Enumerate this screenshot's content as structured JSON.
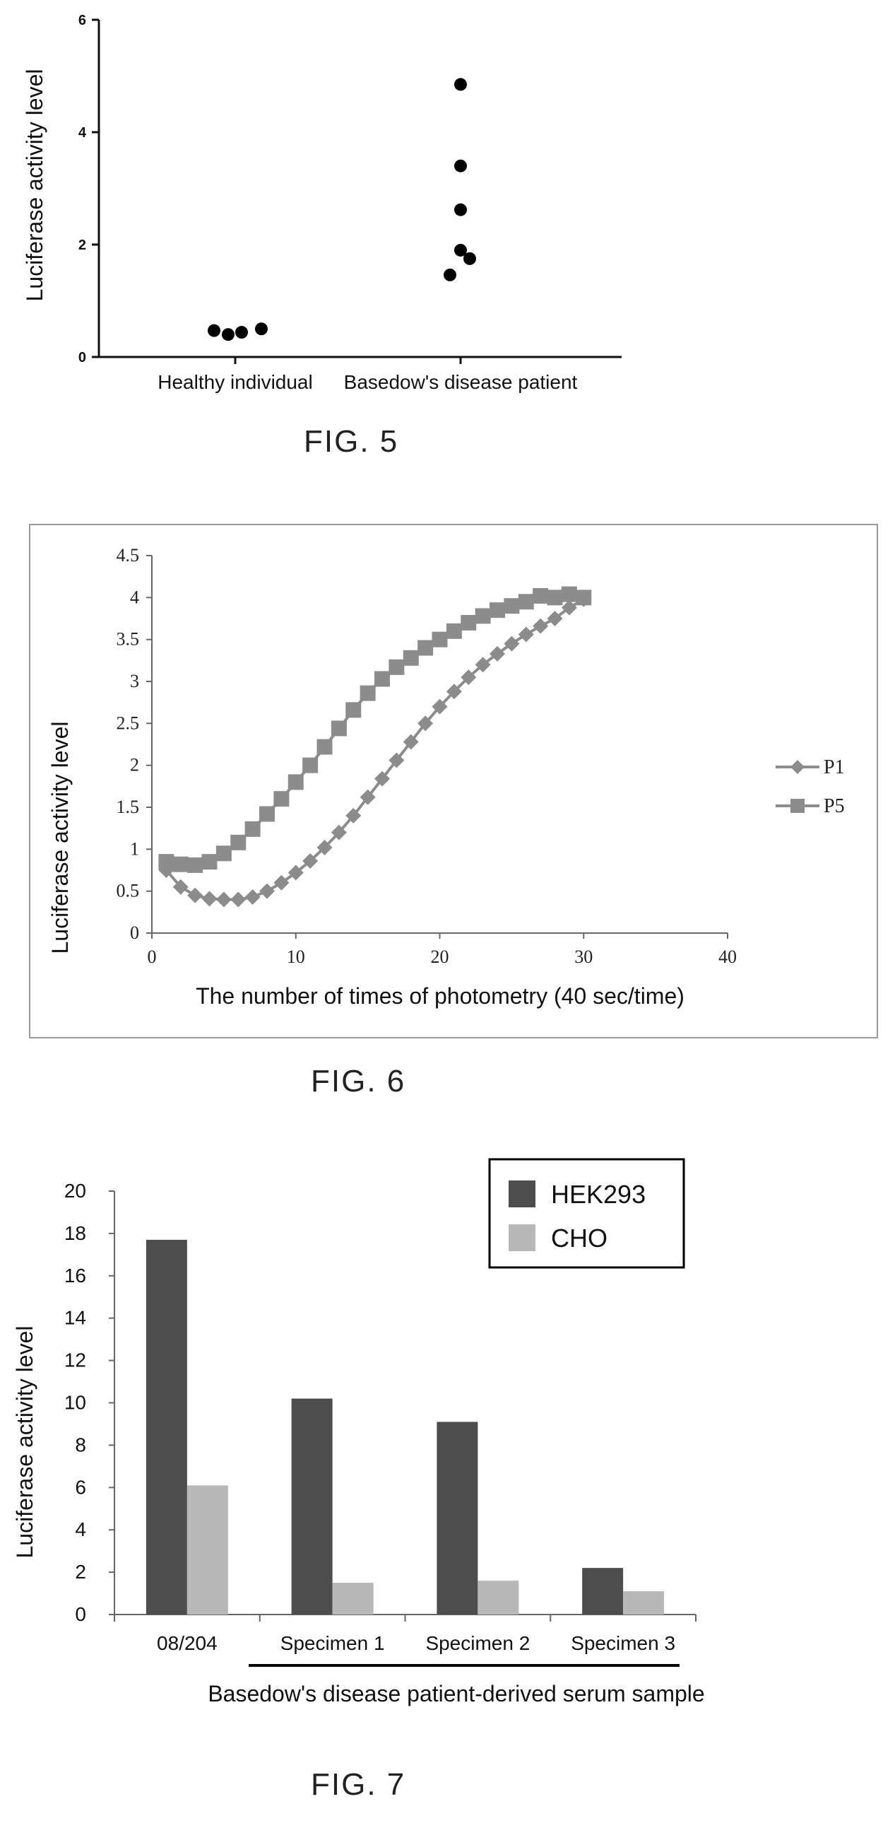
{
  "figures": [
    {
      "caption": "FIG. 5"
    },
    {
      "caption": "FIG. 6"
    },
    {
      "caption": "FIG. 7"
    }
  ],
  "chart_data": [
    {
      "type": "scatter",
      "title": "",
      "xlabel": "",
      "ylabel": "Luciferase activity level",
      "ylim": [
        0,
        6
      ],
      "yticks": [
        "0",
        "2",
        "4",
        "6"
      ],
      "categories": [
        "Healthy individual",
        "Basedow's disease patient"
      ],
      "points": [
        {
          "category": "Healthy individual",
          "values": [
            0.47,
            0.4,
            0.44,
            0.5
          ]
        },
        {
          "category": "Basedow's disease patient",
          "values": [
            4.85,
            3.4,
            2.62,
            1.9,
            1.75,
            1.46
          ]
        }
      ],
      "grid": false,
      "marker_color": "#000000"
    },
    {
      "type": "line",
      "title": "",
      "xlabel": "The number of times of photometry (40 sec/time)",
      "ylabel": "Luciferase activity level",
      "xlim": [
        0,
        40
      ],
      "ylim": [
        0,
        4.5
      ],
      "xticks": [
        "0",
        "10",
        "20",
        "30",
        "40"
      ],
      "yticks": [
        "0",
        "0.5",
        "1",
        "1.5",
        "2",
        "2.5",
        "3",
        "3.5",
        "4",
        "4.5"
      ],
      "x": [
        1,
        2,
        3,
        4,
        5,
        6,
        7,
        8,
        9,
        10,
        11,
        12,
        13,
        14,
        15,
        16,
        17,
        18,
        19,
        20,
        21,
        22,
        23,
        24,
        25,
        26,
        27,
        28,
        29,
        30
      ],
      "series": [
        {
          "name": "P1",
          "marker": "diamond",
          "values": [
            0.75,
            0.55,
            0.45,
            0.41,
            0.4,
            0.4,
            0.43,
            0.5,
            0.6,
            0.72,
            0.86,
            1.02,
            1.2,
            1.4,
            1.62,
            1.84,
            2.06,
            2.28,
            2.5,
            2.7,
            2.88,
            3.05,
            3.2,
            3.33,
            3.45,
            3.56,
            3.66,
            3.75,
            3.88,
            3.98
          ]
        },
        {
          "name": "P5",
          "marker": "square",
          "values": [
            0.85,
            0.82,
            0.81,
            0.85,
            0.95,
            1.08,
            1.24,
            1.42,
            1.6,
            1.8,
            2.0,
            2.22,
            2.44,
            2.66,
            2.86,
            3.03,
            3.17,
            3.28,
            3.4,
            3.5,
            3.6,
            3.7,
            3.78,
            3.85,
            3.9,
            3.95,
            4.02,
            4.0,
            4.04,
            4.0
          ]
        }
      ],
      "grid": false,
      "legend": "right",
      "line_color": "#8c8c8c"
    },
    {
      "type": "bar",
      "title": "",
      "xlabel": "Basedow's disease patient-derived serum sample",
      "ylabel": "Luciferase activity level",
      "ylim": [
        0,
        20
      ],
      "yticks": [
        "0",
        "2",
        "4",
        "6",
        "8",
        "10",
        "12",
        "14",
        "16",
        "18",
        "20"
      ],
      "categories": [
        "08/204",
        "Specimen 1",
        "Specimen 2",
        "Specimen 3"
      ],
      "series": [
        {
          "name": "HEK293",
          "values": [
            17.7,
            10.2,
            9.1,
            2.2
          ],
          "color": "#4d4d4d"
        },
        {
          "name": "CHO",
          "values": [
            6.1,
            1.5,
            1.6,
            1.1
          ],
          "color": "#b8b8b8"
        }
      ],
      "grid": false,
      "legend": "top-right"
    }
  ]
}
